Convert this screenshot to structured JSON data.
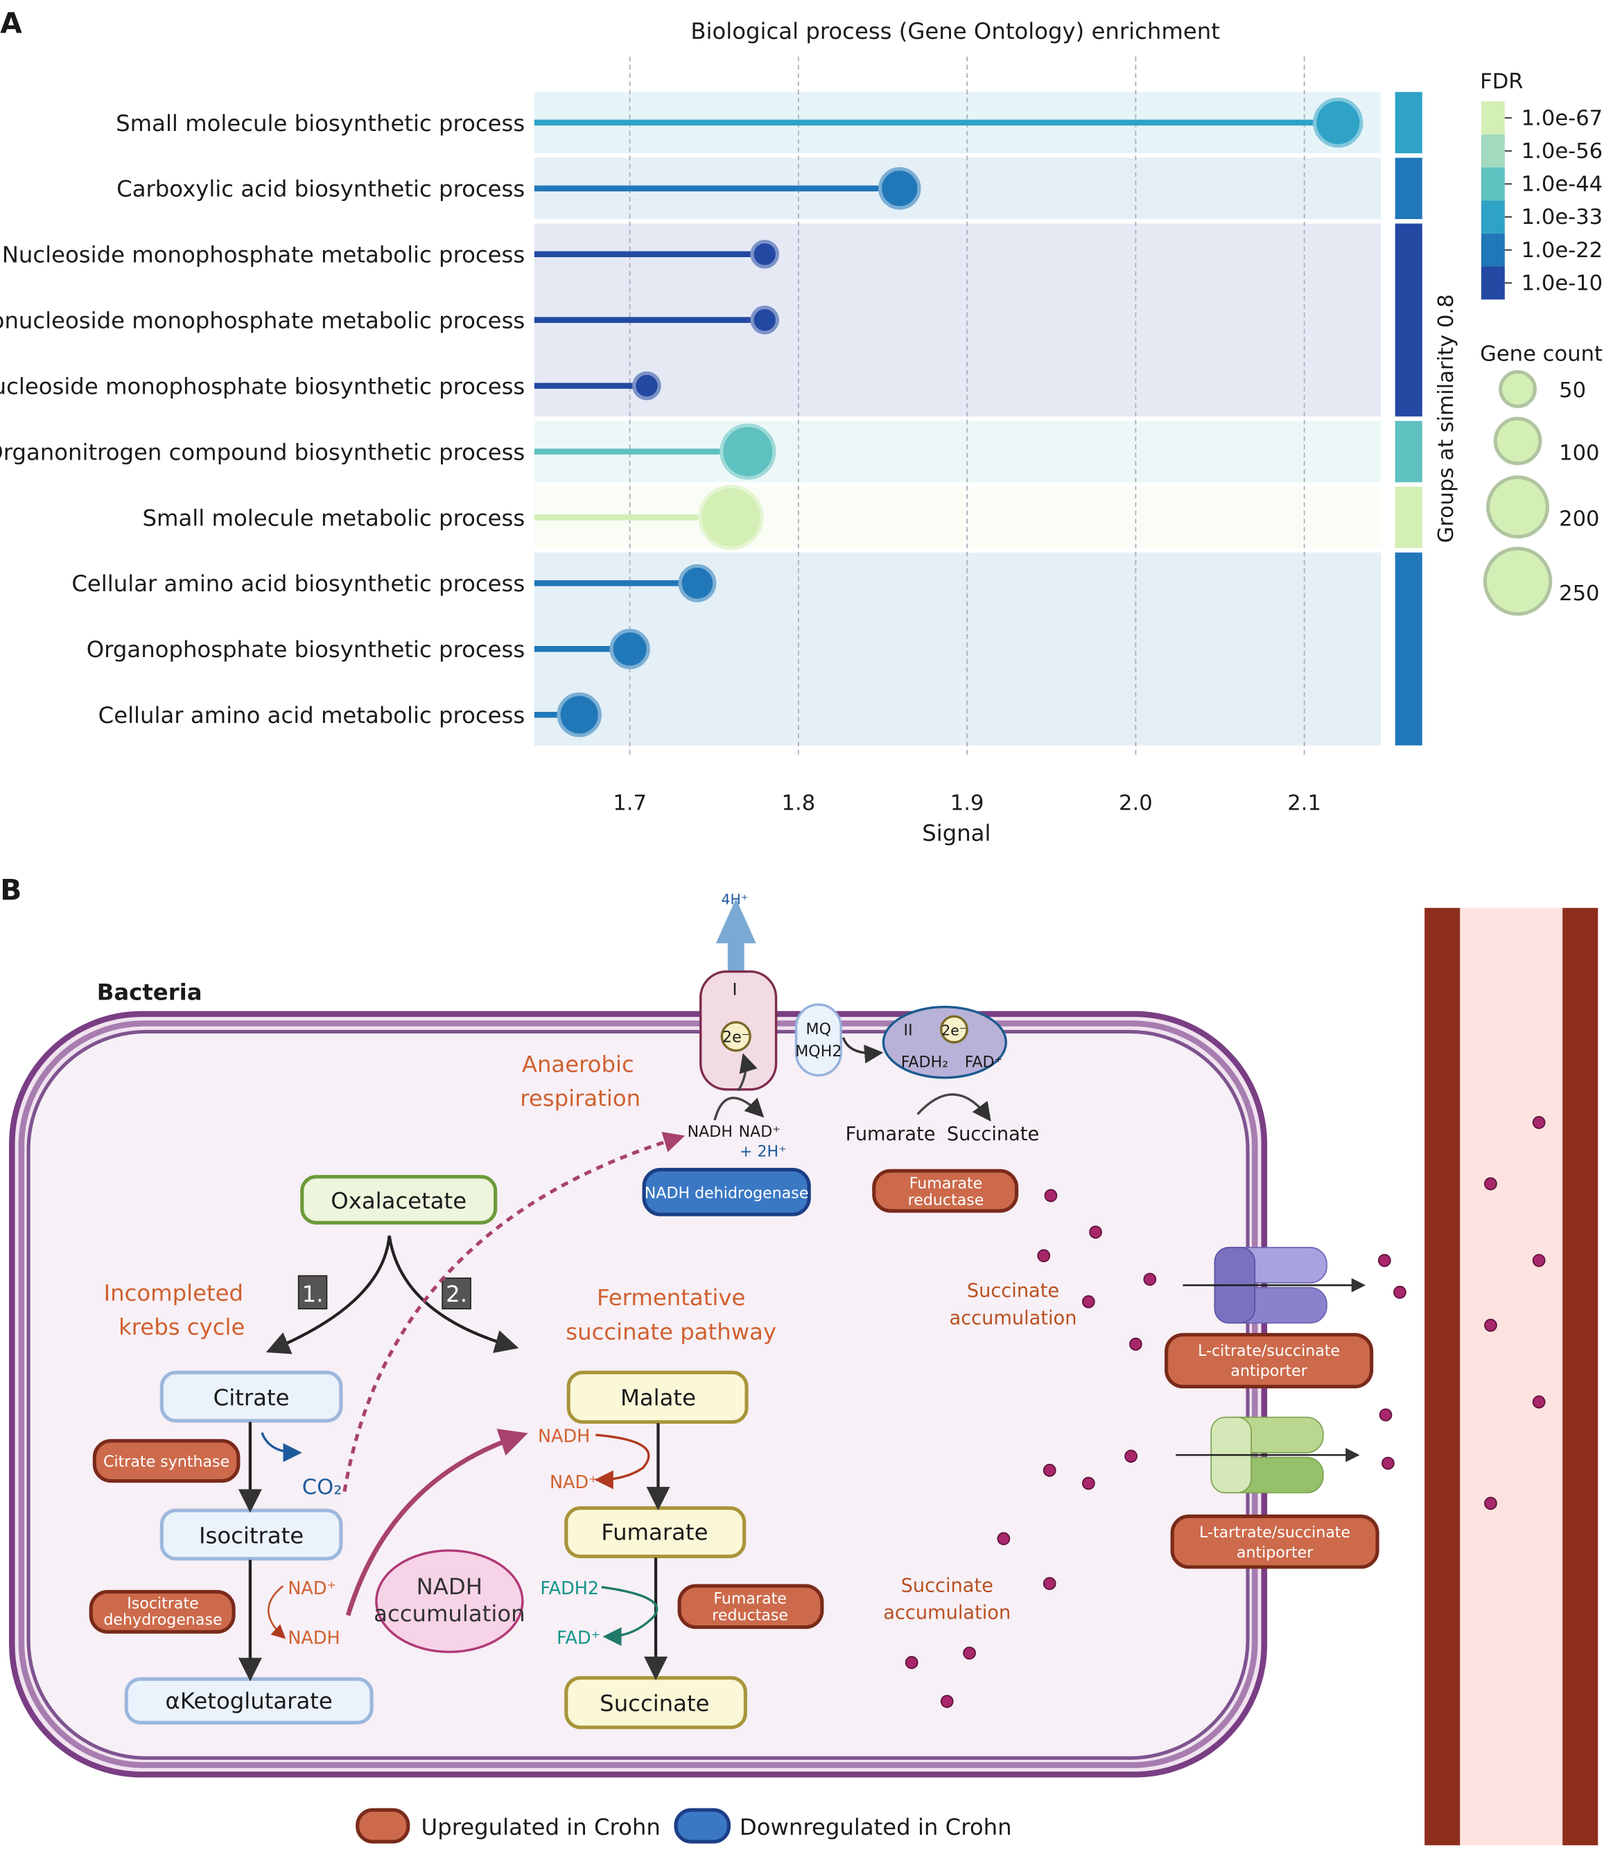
{
  "panel_labels": {
    "a": "A",
    "b": "B"
  },
  "chart_data": {
    "type": "lollipop",
    "title": "Biological process (Gene Ontology) enrichment",
    "xlabel": "Signal",
    "ylabel": "",
    "xlim": [
      1.64,
      2.16
    ],
    "xticks": [
      "1.7",
      "1.8",
      "1.9",
      "2.0",
      "2.1"
    ],
    "grid": true,
    "group_axis_label": "Groups at similarity 0.8",
    "categories": [
      "Small molecule biosynthetic process",
      "Carboxylic acid biosynthetic process",
      "Nucleoside monophosphate metabolic process",
      "Ribonucleoside monophosphate metabolic process",
      "Nucleoside monophosphate biosynthetic process",
      "Organonitrogen compound biosynthetic process",
      "Small molecule metabolic process",
      "Cellular amino acid biosynthetic process",
      "Organophosphate biosynthetic process",
      "Cellular amino acid metabolic process"
    ],
    "signal": [
      2.12,
      1.86,
      1.78,
      1.78,
      1.71,
      1.77,
      1.76,
      1.74,
      1.7,
      1.67
    ],
    "gene_count": [
      110,
      70,
      20,
      20,
      20,
      150,
      220,
      50,
      60,
      80
    ],
    "fdr_level": [
      "1.0e-33",
      "1.0e-22",
      "1.0e-10",
      "1.0e-10",
      "1.0e-10",
      "1.0e-44",
      "1.0e-67",
      "1.0e-22",
      "1.0e-22",
      "1.0e-22"
    ],
    "groups": [
      1,
      2,
      3,
      3,
      3,
      4,
      5,
      6,
      6,
      6
    ],
    "fdr_legend": {
      "title": "FDR",
      "labels": [
        "1.0e-67",
        "1.0e-56",
        "1.0e-44",
        "1.0e-33",
        "1.0e-22",
        "1.0e-10"
      ],
      "colors": [
        "#d4efb5",
        "#a2dac0",
        "#5fc1c0",
        "#2ea3c6",
        "#2178b8",
        "#2449a3"
      ]
    },
    "size_legend": {
      "title": "Gene count",
      "values": [
        50,
        100,
        200,
        250
      ]
    },
    "legend_placement": "right"
  },
  "diagram": {
    "bacteria_label": "Bacteria",
    "complex1": "I",
    "complex2": "II",
    "electrons": "2e⁻",
    "protons_out": "4H⁺",
    "mq": "MQ",
    "mqh2": "MQH2",
    "fadh2_c": "FADH₂",
    "fad_c": "FAD⁺",
    "nadh_top": "NADH",
    "nad_top": "NAD⁺",
    "plus_2h": "+ 2H⁺",
    "fumarate_top": "Fumarate",
    "succinate_top": "Succinate",
    "anaerobic1": "Anaerobic",
    "anaerobic2": "respiration",
    "krebs1": "Incompleted",
    "krebs2": "krebs cycle",
    "ferm1": "Fermentative",
    "ferm2": "succinate pathway",
    "step1": "1.",
    "step2": "2.",
    "oxalacetate": "Oxalacetate",
    "citrate": "Citrate",
    "isocitrate": "Isocitrate",
    "aketoglutarate": "αKetoglutarate",
    "malate": "Malate",
    "fumarate": "Fumarate",
    "succinate": "Succinate",
    "co2": "CO₂",
    "nad_k": "NAD⁺",
    "nadh_k": "NADH",
    "nadh_m": "NADH",
    "nad_m": "NAD⁺",
    "fadh2_f": "FADH2",
    "fad_f": "FAD⁺",
    "nadh_acc1": "NADH",
    "nadh_acc2": "accumulation",
    "succ_acc1": "Succinate",
    "succ_acc2": "accumulation",
    "enzymes": {
      "citrate_synthase": "Citrate synthase",
      "idh1": "Isocitrate",
      "idh2": "dehydrogenase",
      "fr_bottom1": "Fumarate",
      "fr_bottom2": "reductase",
      "fr_top1": "Fumarate",
      "fr_top2": "reductase",
      "nadh_dh": "NADH dehidrogenase",
      "cit_anti1": "L-citrate/succinate",
      "cit_anti2": "antiporter",
      "tar_anti1": "L-tartrate/succinate",
      "tar_anti2": "antiporter"
    },
    "legend": {
      "up": "Upregulated in Crohn",
      "down": "Downregulated in Crohn",
      "up_color": "#cc6a4b",
      "down_color": "#3b78c4"
    }
  }
}
